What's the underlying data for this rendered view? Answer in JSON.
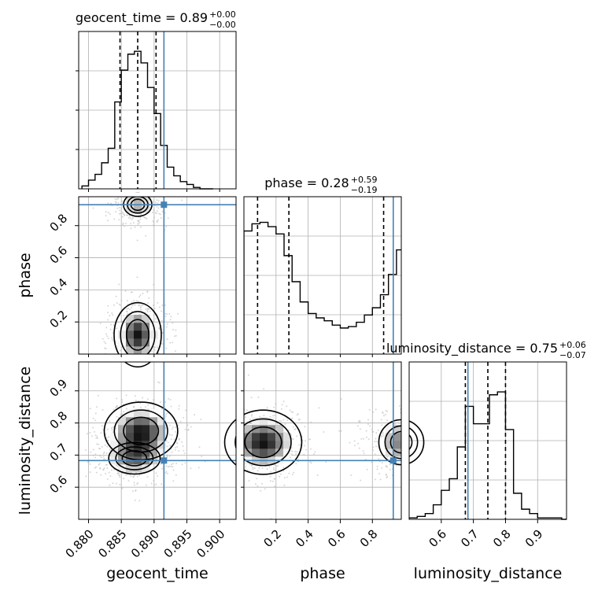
{
  "chart_data": {
    "type": "corner",
    "parameters": [
      "geocent_time",
      "phase",
      "luminosity_distance"
    ],
    "truths": {
      "geocent_time": 0.8915,
      "phase": 0.93,
      "luminosity_distance": 0.683
    },
    "truth_color": "#4682b4",
    "marginals": [
      {
        "parameter": "geocent_time",
        "title": {
          "base": "geocent_time = 0.89",
          "plus": "+0.00",
          "minus": "−0.00"
        },
        "bin_edges": [
          0.879,
          0.88,
          0.881,
          0.882,
          0.883,
          0.884,
          0.885,
          0.886,
          0.887,
          0.888,
          0.889,
          0.89,
          0.891,
          0.892,
          0.893,
          0.894,
          0.895,
          0.896,
          0.897,
          0.898,
          0.899
        ],
        "counts": [
          2,
          6,
          10,
          18,
          28,
          60,
          82,
          93,
          95,
          87,
          70,
          52,
          30,
          15,
          9,
          5,
          3,
          1,
          0,
          0
        ],
        "ylim": [
          0,
          100
        ],
        "quantiles": [
          0.8848,
          0.8875,
          0.8903
        ]
      },
      {
        "parameter": "phase",
        "title": {
          "base": "phase = 0.28",
          "plus": "+0.59",
          "minus": "−0.19"
        },
        "bin_edges": [
          0.0,
          0.05,
          0.1,
          0.15,
          0.2,
          0.25,
          0.3,
          0.35,
          0.4,
          0.45,
          0.5,
          0.55,
          0.6,
          0.65,
          0.7,
          0.75,
          0.8,
          0.85,
          0.9,
          0.95,
          1.0
        ],
        "counts": [
          85,
          90,
          91,
          88,
          83,
          68,
          50,
          36,
          28,
          25,
          23,
          20,
          18,
          19,
          22,
          27,
          32,
          41,
          55,
          72
        ],
        "ylim": [
          0,
          100
        ],
        "quantiles": [
          0.085,
          0.28,
          0.87
        ]
      },
      {
        "parameter": "luminosity_distance",
        "title": {
          "base": "luminosity_distance = 0.75",
          "plus": "+0.06",
          "minus": "−0.07"
        },
        "bin_edges": [
          0.5,
          0.525,
          0.55,
          0.575,
          0.6,
          0.625,
          0.65,
          0.675,
          0.7,
          0.725,
          0.75,
          0.775,
          0.8,
          0.825,
          0.85,
          0.875,
          0.9,
          0.925,
          0.95,
          0.975,
          1.0
        ],
        "counts": [
          1,
          2,
          4,
          10,
          20,
          28,
          50,
          78,
          66,
          66,
          86,
          88,
          62,
          18,
          7,
          4,
          1,
          1,
          1,
          0
        ],
        "ylim": [
          0,
          100
        ],
        "quantiles": [
          0.675,
          0.745,
          0.8
        ]
      }
    ],
    "joint": [
      {
        "x": "geocent_time",
        "y": "phase",
        "density_centers": [
          {
            "x": 0.8875,
            "y": 0.12,
            "strength": 1.0,
            "sx": 0.0018,
            "sy": 0.1
          },
          {
            "x": 0.8875,
            "y": 0.93,
            "strength": 0.6,
            "sx": 0.0018,
            "sy": 0.06
          }
        ]
      },
      {
        "x": "geocent_time",
        "y": "luminosity_distance",
        "density_centers": [
          {
            "x": 0.888,
            "y": 0.775,
            "strength": 1.0,
            "sx": 0.0028,
            "sy": 0.045
          },
          {
            "x": 0.887,
            "y": 0.69,
            "strength": 0.7,
            "sx": 0.0028,
            "sy": 0.035
          }
        ]
      },
      {
        "x": "phase",
        "y": "luminosity_distance",
        "density_centers": [
          {
            "x": 0.12,
            "y": 0.74,
            "strength": 1.0,
            "sx": 0.12,
            "sy": 0.05
          },
          {
            "x": 0.98,
            "y": 0.74,
            "strength": 0.7,
            "sx": 0.1,
            "sy": 0.05
          }
        ]
      }
    ],
    "ranges": {
      "geocent_time": [
        0.8785,
        0.9025
      ],
      "phase": [
        0.0,
        0.98
      ],
      "luminosity_distance": [
        0.5,
        0.99
      ]
    },
    "ticks": {
      "geocent_time": [
        "0.880",
        "0.885",
        "0.890",
        "0.895",
        "0.900"
      ],
      "phase": [
        "0.2",
        "0.4",
        "0.6",
        "0.8"
      ],
      "luminosity_distance": [
        "0.6",
        "0.7",
        "0.8",
        "0.9"
      ]
    },
    "ticks_on_y": {
      "phase": [
        "0.2",
        "0.4",
        "0.6",
        "0.8"
      ],
      "luminosity_distance": [
        "0.6",
        "0.7",
        "0.8",
        "0.9"
      ]
    },
    "grid": true,
    "xlabels": [
      "geocent_time",
      "phase",
      "luminosity_distance"
    ],
    "ylabels": [
      "phase",
      "luminosity_distance"
    ]
  }
}
